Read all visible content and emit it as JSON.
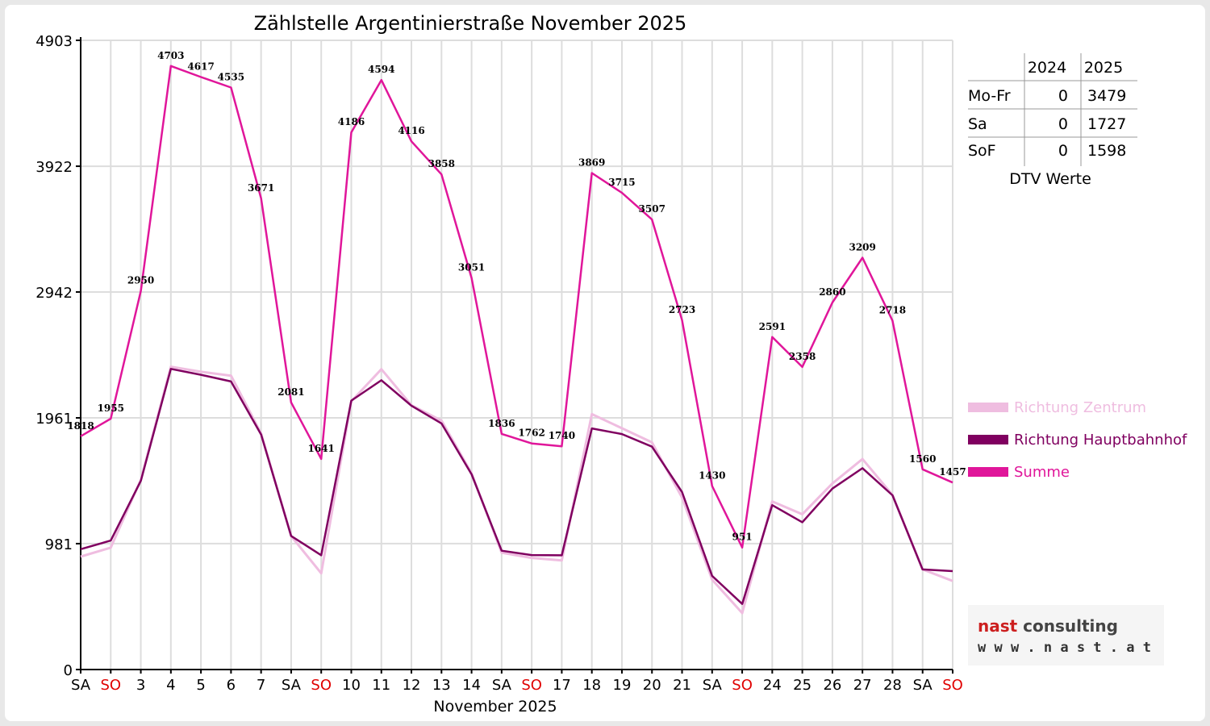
{
  "chart_data": {
    "type": "line",
    "title": "Zählstelle Argentinierstraße November 2025",
    "xlabel": "November 2025",
    "ylabel": "",
    "ylim": [
      0,
      4903
    ],
    "yticks": [
      "0",
      "981",
      "1961",
      "2942",
      "3922",
      "4903"
    ],
    "ytick_values": [
      0,
      981,
      1961,
      2942,
      3922,
      4903
    ],
    "categories": [
      "SA",
      "SO",
      "3",
      "4",
      "5",
      "6",
      "7",
      "SA",
      "SO",
      "10",
      "11",
      "12",
      "13",
      "14",
      "SA",
      "SO",
      "17",
      "18",
      "19",
      "20",
      "21",
      "SA",
      "SO",
      "24",
      "25",
      "26",
      "27",
      "28",
      "SA",
      "SO"
    ],
    "weekend_color_indices": [
      1,
      8,
      15,
      22,
      29
    ],
    "grid": true,
    "legend_position": "right",
    "series": [
      {
        "name": "Richtung Zentrum",
        "color": "#efbde0",
        "values": [
          880,
          950,
          1480,
          2360,
          2320,
          2290,
          1840,
          1040,
          750,
          2090,
          2340,
          2060,
          1940,
          1530,
          910,
          870,
          850,
          1990,
          1880,
          1770,
          1340,
          700,
          440,
          1310,
          1210,
          1450,
          1640,
          1360,
          780,
          690
        ]
      },
      {
        "name": "Richtung Hauptbahnhof",
        "color": "#800060",
        "values": [
          938,
          1005,
          1470,
          2343,
          2297,
          2245,
          1831,
          1041,
          891,
          2096,
          2254,
          2056,
          1918,
          1521,
          926,
          892,
          890,
          1879,
          1835,
          1737,
          1383,
          730,
          511,
          1281,
          1148,
          1410,
          1569,
          1358,
          780,
          767
        ]
      },
      {
        "name": "Summe",
        "color": "#e0169a",
        "values": [
          1818,
          1955,
          2950,
          4703,
          4617,
          4535,
          3671,
          2081,
          1641,
          4186,
          4594,
          4116,
          3858,
          3051,
          1836,
          1762,
          1740,
          3869,
          3715,
          3507,
          2723,
          1430,
          951,
          2591,
          2358,
          2860,
          3209,
          2718,
          1560,
          1457
        ]
      }
    ],
    "data_labels": [
      "1818",
      "1955",
      "2950",
      "4703",
      "4617",
      "4535",
      "3671",
      "2081",
      "1641",
      "4186",
      "4594",
      "4116",
      "3858",
      "3051",
      "1836",
      "1762",
      "1740",
      "3869",
      "3715",
      "3507",
      "2723",
      "1430",
      "951",
      "2591",
      "2358",
      "2860",
      "3209",
      "2718",
      "1560",
      "1457"
    ],
    "dtv_table": {
      "caption": "DTV Werte",
      "headers": [
        "",
        "2024",
        "2025"
      ],
      "rows": [
        [
          "Mo-Fr",
          "0",
          "3479"
        ],
        [
          "Sa",
          "0",
          "1727"
        ],
        [
          "SoF",
          "0",
          "1598"
        ]
      ]
    }
  },
  "logo": {
    "line1_a": "nast",
    "line1_b": " consulting",
    "line2": "w w w . n a s t . a t",
    "color_a": "#cc1f1f",
    "color_b": "#444444"
  }
}
